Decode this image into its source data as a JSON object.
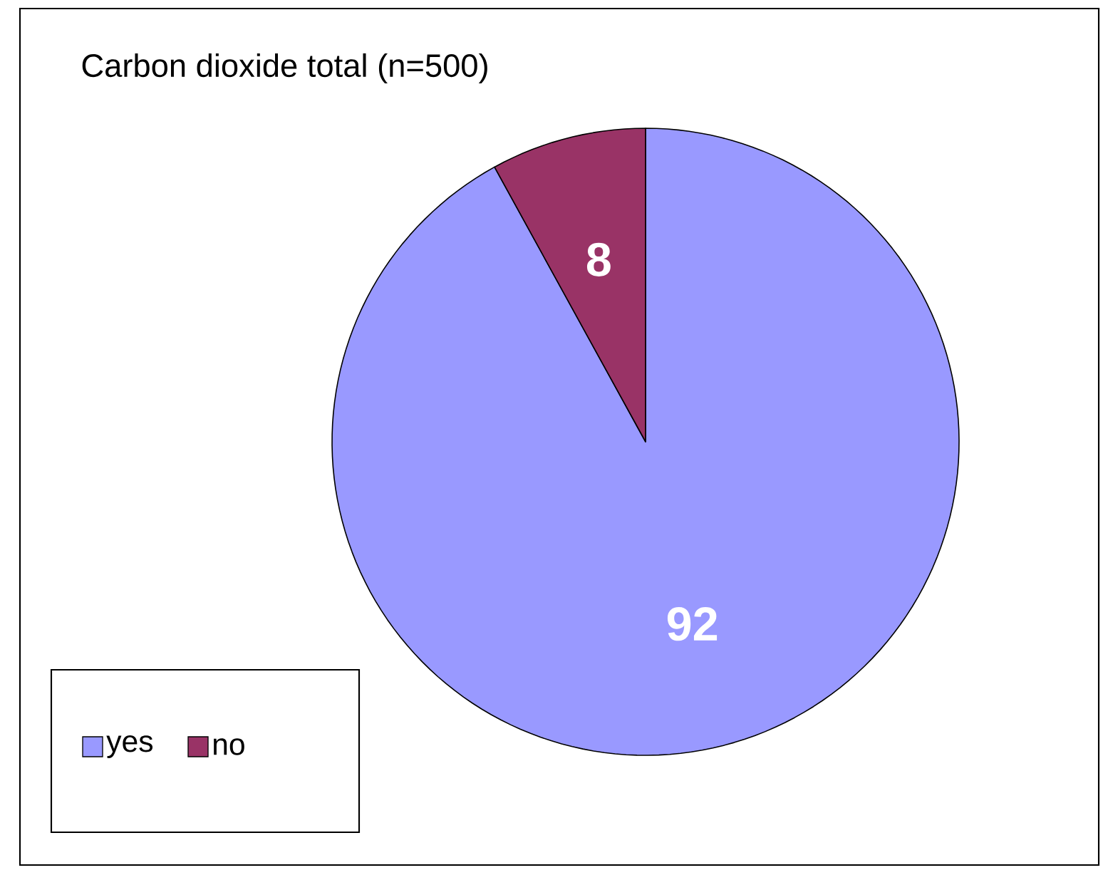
{
  "chart_data": {
    "type": "pie",
    "title": "Carbon dioxide total (n=500)",
    "categories": [
      "yes",
      "no"
    ],
    "values": [
      92,
      8
    ],
    "colors": [
      "#9999ff",
      "#993366"
    ],
    "data_labels": true,
    "legend": "bottom left"
  }
}
